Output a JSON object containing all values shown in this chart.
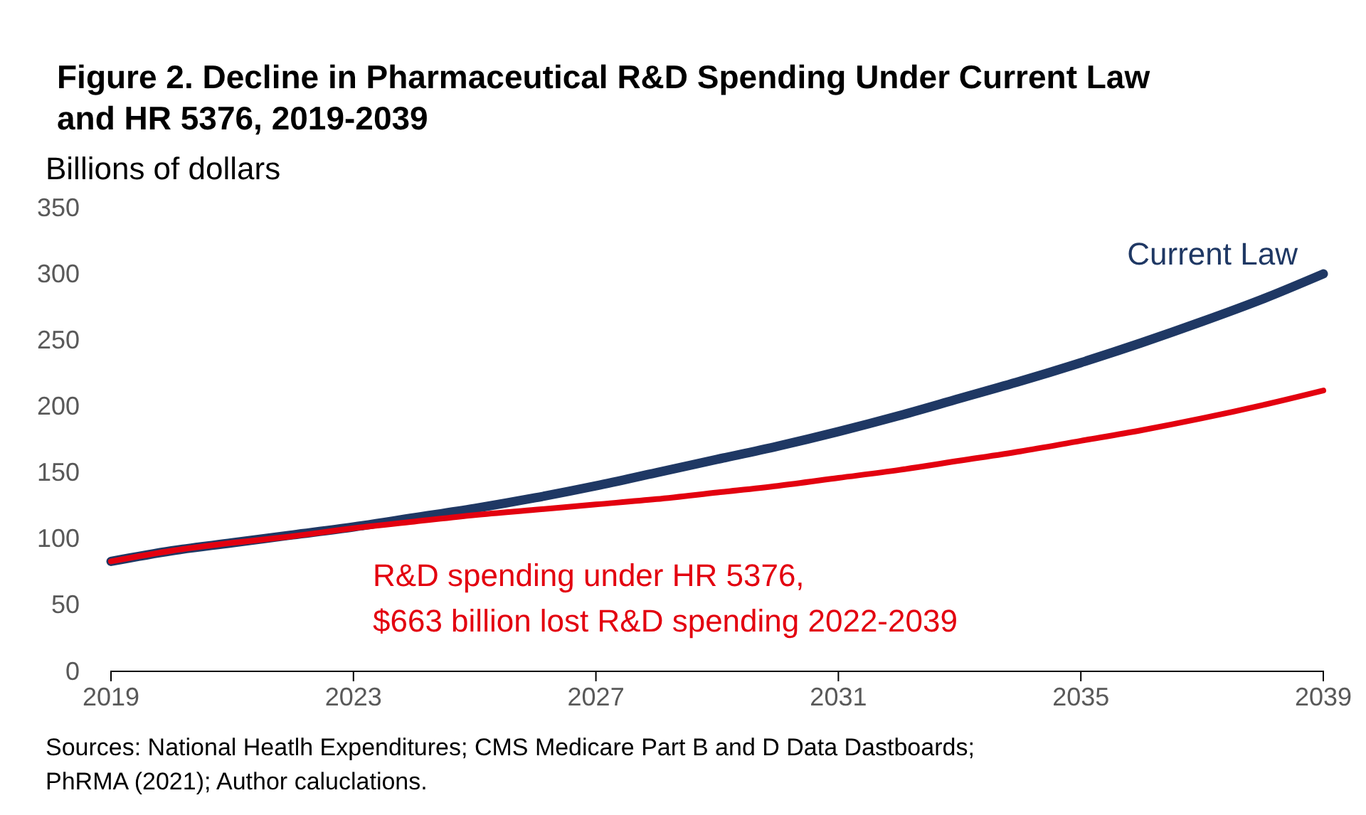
{
  "chart_data": {
    "type": "line",
    "title": "Figure 2. Decline in Pharmaceutical R&D Spending Under Current Law and HR 5376, 2019-2039",
    "ylabel": "Billions of dollars",
    "x": [
      2019,
      2020,
      2021,
      2022,
      2023,
      2024,
      2025,
      2026,
      2027,
      2028,
      2029,
      2030,
      2031,
      2032,
      2033,
      2034,
      2035,
      2036,
      2037,
      2038,
      2039
    ],
    "series": [
      {
        "name": "Current Law",
        "color": "#1f3864",
        "values": [
          83,
          91,
          97,
          103,
          109,
          116,
          123,
          131,
          140,
          150,
          160,
          170,
          181,
          193,
          206,
          219,
          233,
          248,
          264,
          281,
          300
        ]
      },
      {
        "name": "R&D spending under HR 5376,",
        "color": "#e3000f",
        "values": [
          83,
          91,
          97,
          102,
          108,
          113,
          118,
          122,
          126,
          130,
          135,
          140,
          146,
          152,
          159,
          166,
          174,
          182,
          191,
          201,
          212
        ]
      }
    ],
    "annotations": [
      "$663 billion lost R&D spending 2022-2039",
      "Sources: National Heatlh Expenditures; CMS Medicare Part B and D Data Dastboards;",
      "PhRMA (2021); Author caluclations."
    ],
    "xlim": [
      2019,
      2039
    ],
    "xticks": [
      2019,
      2023,
      2027,
      2031,
      2035,
      2039
    ],
    "ylim": [
      0,
      350
    ],
    "yticks": [
      0,
      50,
      100,
      150,
      200,
      250,
      300,
      350
    ],
    "grid": false,
    "legend": false,
    "marker": "none",
    "line_style": "solid"
  }
}
